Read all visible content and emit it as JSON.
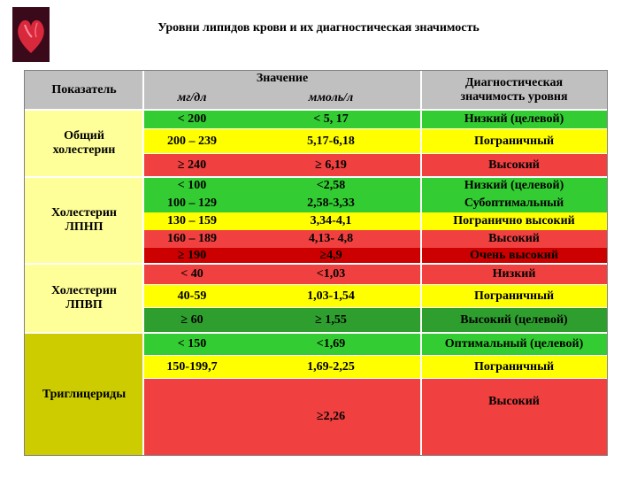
{
  "title": "Уровни липидов крови и их диагностическая значимость",
  "logo_icon": "heart-icon",
  "colors": {
    "header": "#c0c0c0",
    "green": "#33cc33",
    "yellow": "#ffff00",
    "red": "#f04040",
    "dark_green": "#2e9e2e",
    "dark_red": "#cc0000",
    "olive_yellow": "#cccc00"
  },
  "table": {
    "headers": {
      "indicator": "Показатель",
      "value": "Значение",
      "mgdl": "мг/дл",
      "mmol": "ммоль/л",
      "significance": "Диагностическая значимость уровня"
    },
    "groups": [
      {
        "name": "Общий холестерин",
        "rows": [
          {
            "mgdl": "< 200",
            "mmol": "< 5, 17",
            "level": "Низкий (целевой)"
          },
          {
            "mgdl": "200 – 239",
            "mmol": "5,17-6,18",
            "level": "Пограничный"
          },
          {
            "mgdl": "≥ 240",
            "mmol": "≥ 6,19",
            "level": "Высокий"
          }
        ]
      },
      {
        "name": "Холестерин ЛПНП",
        "rows": [
          {
            "mgdl": "< 100",
            "mmol": "<2,58",
            "level": "Низкий (целевой)"
          },
          {
            "mgdl": "100 – 129",
            "mmol": "2,58-3,33",
            "level": "Субоптимальный"
          },
          {
            "mgdl": "130 – 159",
            "mmol": "3,34-4,1",
            "level": "Погранично высокий"
          },
          {
            "mgdl": "160 – 189",
            "mmol": "4,13- 4,8",
            "level": "Высокий"
          },
          {
            "mgdl": "≥ 190",
            "mmol": "≥4,9",
            "level": "Очень высокий"
          }
        ]
      },
      {
        "name": "Холестерин ЛПВП",
        "rows": [
          {
            "mgdl": "< 40",
            "mmol": "<1,03",
            "level": "Низкий"
          },
          {
            "mgdl": "40-59",
            "mmol": "1,03-1,54",
            "level": "Пограничный"
          },
          {
            "mgdl": "≥ 60",
            "mmol": "≥ 1,55",
            "level": "Высокий (целевой)"
          }
        ]
      },
      {
        "name": "Триглицериды",
        "rows": [
          {
            "mgdl": "< 150",
            "mmol": "<1,69",
            "level": "Оптимальный (целевой)"
          },
          {
            "mgdl": "150-199,7",
            "mmol": "1,69-2,25",
            "level": "Пограничный"
          },
          {
            "mgdl": "",
            "mmol": "≥2,26",
            "level": "Высокий"
          }
        ]
      }
    ]
  }
}
